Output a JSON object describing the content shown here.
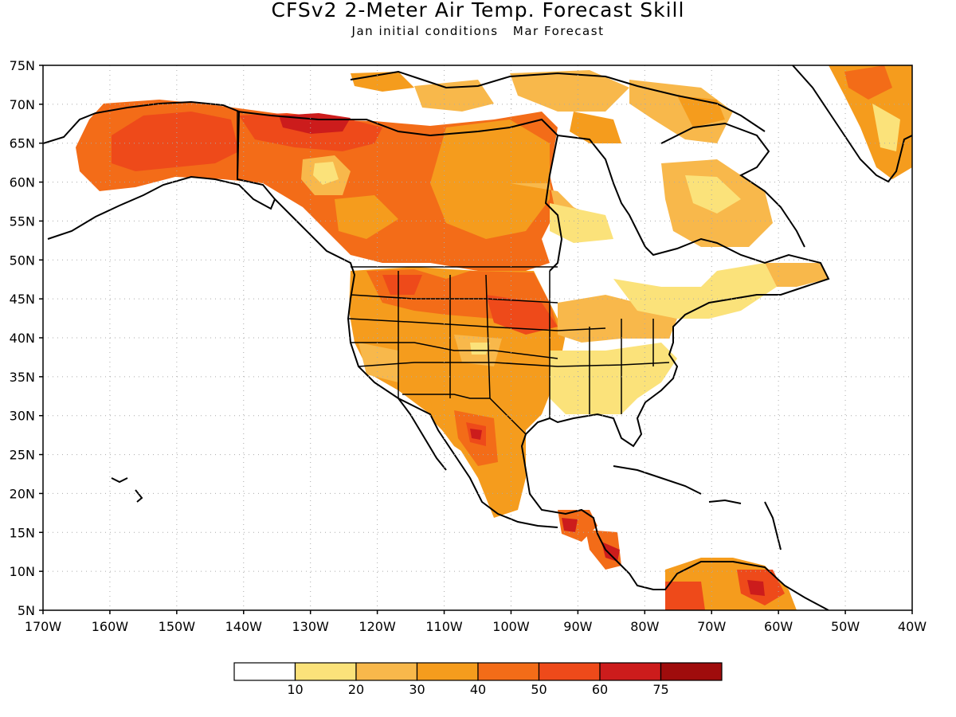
{
  "title": "CFSv2 2-Meter Air Temp. Forecast Skill",
  "subtitle": {
    "init": "Jan initial conditions",
    "forecast": "Mar Forecast"
  },
  "map": {
    "projection": "lat-lon",
    "lon_range": [
      -170,
      -40
    ],
    "lat_range": [
      5,
      75
    ],
    "lat_labels": [
      "75N",
      "70N",
      "65N",
      "60N",
      "55N",
      "50N",
      "45N",
      "40N",
      "35N",
      "30N",
      "25N",
      "20N",
      "15N",
      "10N",
      "5N"
    ],
    "lon_labels": [
      "170W",
      "160W",
      "150W",
      "140W",
      "130W",
      "120W",
      "110W",
      "100W",
      "90W",
      "80W",
      "70W",
      "60W",
      "50W",
      "40W"
    ],
    "grid": "dotted"
  },
  "legend": {
    "labels": [
      "10",
      "20",
      "30",
      "40",
      "50",
      "60",
      "75"
    ],
    "colors": [
      "#ffffff",
      "#fbe27a",
      "#f8b84b",
      "#f59c1d",
      "#f36c18",
      "#ee4a1a",
      "#cc1c1c",
      "#9f0c0c"
    ]
  },
  "colors": {
    "lvl1": "#fbe27a",
    "lvl2": "#f8b84b",
    "lvl3": "#f59c1d",
    "lvl4": "#f36c18",
    "lvl5": "#ee4a1a",
    "lvl6": "#cc1c1c",
    "lvl7": "#9f0c0c"
  }
}
